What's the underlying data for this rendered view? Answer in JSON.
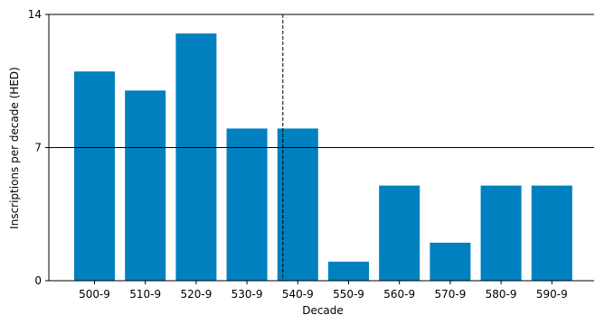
{
  "chart_data": {
    "type": "bar",
    "title": "",
    "xlabel": "Decade",
    "ylabel": "Inscriptions per decade (HED)",
    "categories": [
      "500-9",
      "510-9",
      "520-9",
      "530-9",
      "540-9",
      "550-9",
      "560-9",
      "570-9",
      "580-9",
      "590-9"
    ],
    "values": [
      11,
      10,
      13,
      8,
      8,
      1,
      5,
      2,
      5,
      5
    ],
    "ylim": [
      0,
      14
    ],
    "yticks": [
      0,
      7,
      14
    ],
    "reference_line_y": 7,
    "marker_line_x": "540-9",
    "bar_color": "#0080bf",
    "grid": false
  }
}
